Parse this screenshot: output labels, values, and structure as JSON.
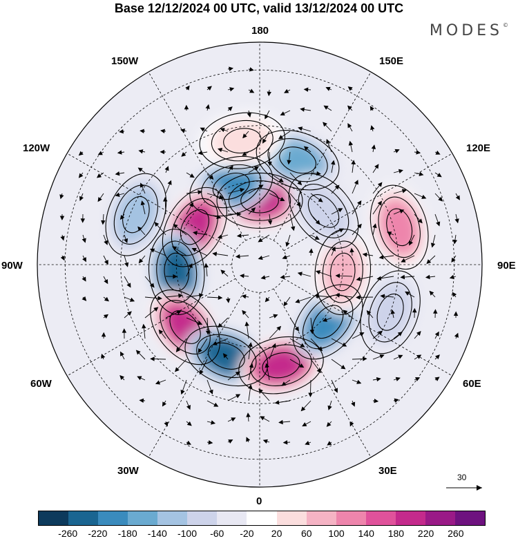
{
  "title": "Base 12/12/2024 00 UTC, valid 13/12/2024 00 UTC",
  "logo": "MODES",
  "logo_mark": "©",
  "longitude_labels": {
    "top": "180",
    "bottom": "0",
    "left": "90W",
    "right": "90E",
    "upper_left_1": "150W",
    "upper_left_2": "120W",
    "lower_left_1": "60W",
    "lower_left_2": "30W",
    "upper_right_1": "150E",
    "upper_right_2": "120E",
    "lower_right_1": "60E",
    "lower_right_2": "30E"
  },
  "reference_vector": {
    "label": "30"
  },
  "colorbar": {
    "colors": [
      "#0d3a5c",
      "#1a6591",
      "#3a8bbd",
      "#6aaad0",
      "#a4c3e2",
      "#cdd3ea",
      "#e8e8f3",
      "#ffffff",
      "#fbdede",
      "#f5b3c4",
      "#ee85ac",
      "#e0529b",
      "#c42a8c",
      "#9a1a87",
      "#6e127f"
    ],
    "ticks": [
      "-260",
      "-220",
      "-180",
      "-140",
      "-100",
      "-60",
      "-20",
      "20",
      "60",
      "100",
      "140",
      "180",
      "220",
      "260"
    ]
  },
  "anomaly_features": [
    {
      "lon": 180,
      "lat": 67,
      "value": 230
    },
    {
      "lon": 160,
      "lat": 50,
      "value": -160
    },
    {
      "lon": -160,
      "lat": 60,
      "value": -190
    },
    {
      "lon": -172,
      "lat": 45,
      "value": 60
    },
    {
      "lon": -120,
      "lat": 63,
      "value": 230
    },
    {
      "lon": -112,
      "lat": 42,
      "value": -100
    },
    {
      "lon": -85,
      "lat": 60,
      "value": -240
    },
    {
      "lon": -50,
      "lat": 55,
      "value": 250
    },
    {
      "lon": -20,
      "lat": 55,
      "value": -250
    },
    {
      "lon": 12,
      "lat": 53,
      "value": 230
    },
    {
      "lon": 50,
      "lat": 58,
      "value": -200
    },
    {
      "lon": 85,
      "lat": 60,
      "value": 110
    },
    {
      "lon": 105,
      "lat": 38,
      "value": 140
    },
    {
      "lon": 70,
      "lat": 40,
      "value": -80
    },
    {
      "lon": 130,
      "lat": 60,
      "value": -60
    }
  ]
}
